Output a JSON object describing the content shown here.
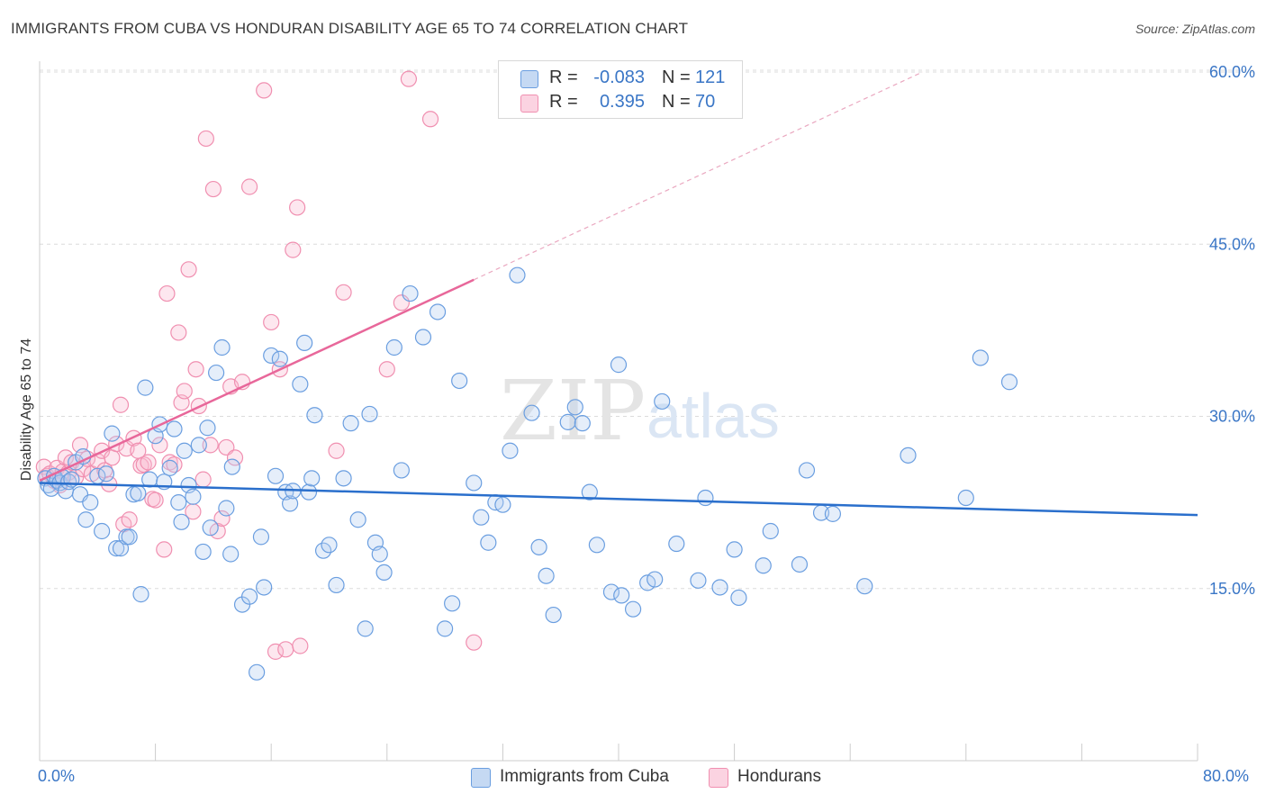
{
  "title": "IMMIGRANTS FROM CUBA VS HONDURAN DISABILITY AGE 65 TO 74 CORRELATION CHART",
  "source": "Source: ZipAtlas.com",
  "watermark": {
    "zip": "ZIP",
    "atlas": "atlas"
  },
  "legend": {
    "r_label": "R =",
    "n_label": "N =",
    "cuba": {
      "r": "-0.083",
      "n": "121"
    },
    "hond": {
      "r": "0.395",
      "n": "70"
    }
  },
  "bottom_legend": {
    "cuba": "Immigrants from Cuba",
    "hond": "Hondurans"
  },
  "x_axis_labels": {
    "min": "0.0%",
    "max": "80.0%"
  },
  "chart_data": {
    "type": "scatter",
    "title": "IMMIGRANTS FROM CUBA VS HONDURAN DISABILITY AGE 65 TO 74 CORRELATION CHART",
    "xlabel": "",
    "ylabel": "Disability Age 65 to 74",
    "xlim": [
      0,
      80
    ],
    "ylim": [
      0,
      62
    ],
    "y_ticks": [
      15,
      30,
      45,
      60
    ],
    "y_tick_labels": [
      "15.0%",
      "30.0%",
      "45.0%",
      "60.0%"
    ],
    "grid": true,
    "colors": {
      "cuba": "#6a9ee0",
      "hond": "#f08fb0",
      "cuba_line": "#2a6fcc",
      "hond_line": "#e8679a"
    },
    "series": [
      {
        "name": "Immigrants from Cuba",
        "trend": {
          "x": [
            0,
            80
          ],
          "y": [
            24.2,
            21.4
          ]
        },
        "points": [
          [
            0.4,
            24.6
          ],
          [
            0.6,
            24.0
          ],
          [
            0.8,
            23.7
          ],
          [
            1.0,
            24.8
          ],
          [
            1.2,
            24.4
          ],
          [
            1.4,
            24.2
          ],
          [
            1.6,
            24.7
          ],
          [
            1.8,
            23.5
          ],
          [
            2.0,
            24.3
          ],
          [
            2.2,
            24.5
          ],
          [
            2.5,
            26.0
          ],
          [
            2.8,
            23.2
          ],
          [
            3.0,
            26.5
          ],
          [
            3.2,
            21.0
          ],
          [
            3.5,
            22.5
          ],
          [
            4.0,
            24.8
          ],
          [
            4.3,
            20.0
          ],
          [
            4.6,
            25.0
          ],
          [
            5.0,
            28.5
          ],
          [
            5.3,
            18.5
          ],
          [
            5.6,
            18.5
          ],
          [
            6.0,
            19.5
          ],
          [
            6.2,
            19.5
          ],
          [
            6.5,
            23.2
          ],
          [
            6.8,
            23.3
          ],
          [
            7.0,
            14.5
          ],
          [
            7.3,
            32.5
          ],
          [
            7.6,
            24.5
          ],
          [
            8.0,
            28.3
          ],
          [
            8.3,
            29.3
          ],
          [
            8.6,
            24.3
          ],
          [
            9.0,
            25.5
          ],
          [
            9.3,
            28.9
          ],
          [
            9.6,
            22.5
          ],
          [
            9.8,
            20.8
          ],
          [
            10.0,
            27.0
          ],
          [
            10.3,
            24.0
          ],
          [
            10.6,
            23.0
          ],
          [
            11.0,
            27.5
          ],
          [
            11.3,
            18.2
          ],
          [
            11.6,
            29.0
          ],
          [
            11.8,
            20.3
          ],
          [
            12.2,
            33.8
          ],
          [
            12.6,
            36.0
          ],
          [
            12.9,
            22.0
          ],
          [
            13.2,
            18.0
          ],
          [
            13.3,
            25.6
          ],
          [
            14.0,
            13.6
          ],
          [
            14.5,
            14.3
          ],
          [
            15.0,
            7.7
          ],
          [
            15.3,
            19.5
          ],
          [
            15.5,
            15.1
          ],
          [
            16.0,
            35.3
          ],
          [
            16.3,
            24.8
          ],
          [
            16.6,
            35.0
          ],
          [
            17.0,
            23.4
          ],
          [
            17.3,
            22.4
          ],
          [
            17.5,
            23.5
          ],
          [
            18.0,
            32.8
          ],
          [
            18.3,
            36.4
          ],
          [
            18.6,
            23.4
          ],
          [
            18.8,
            24.6
          ],
          [
            19.0,
            30.1
          ],
          [
            19.6,
            18.3
          ],
          [
            20.0,
            18.8
          ],
          [
            20.5,
            15.3
          ],
          [
            21.0,
            24.6
          ],
          [
            21.5,
            29.4
          ],
          [
            22.0,
            21.0
          ],
          [
            22.5,
            11.5
          ],
          [
            22.8,
            30.2
          ],
          [
            23.2,
            19.0
          ],
          [
            23.5,
            18.0
          ],
          [
            23.8,
            16.4
          ],
          [
            24.5,
            36.0
          ],
          [
            25.0,
            25.3
          ],
          [
            25.6,
            40.7
          ],
          [
            26.5,
            36.9
          ],
          [
            27.5,
            39.1
          ],
          [
            28.0,
            11.5
          ],
          [
            28.5,
            13.7
          ],
          [
            29.0,
            33.1
          ],
          [
            30.0,
            24.2
          ],
          [
            30.5,
            21.2
          ],
          [
            31.0,
            19.0
          ],
          [
            31.5,
            22.5
          ],
          [
            32.0,
            22.3
          ],
          [
            32.5,
            27.0
          ],
          [
            33.0,
            42.3
          ],
          [
            34.0,
            30.3
          ],
          [
            34.5,
            18.6
          ],
          [
            35.0,
            16.1
          ],
          [
            35.5,
            12.7
          ],
          [
            36.5,
            29.5
          ],
          [
            37.0,
            30.8
          ],
          [
            37.5,
            29.4
          ],
          [
            38.0,
            23.4
          ],
          [
            38.5,
            18.8
          ],
          [
            39.5,
            14.7
          ],
          [
            40.0,
            34.5
          ],
          [
            40.2,
            14.4
          ],
          [
            41.0,
            13.2
          ],
          [
            42.0,
            15.5
          ],
          [
            42.5,
            15.8
          ],
          [
            43.0,
            31.3
          ],
          [
            44.0,
            18.9
          ],
          [
            45.5,
            15.7
          ],
          [
            46.0,
            22.9
          ],
          [
            47.0,
            15.1
          ],
          [
            48.0,
            18.4
          ],
          [
            48.3,
            14.2
          ],
          [
            50.0,
            17.0
          ],
          [
            50.5,
            20.0
          ],
          [
            52.5,
            17.1
          ],
          [
            53.0,
            25.3
          ],
          [
            54.0,
            21.6
          ],
          [
            54.8,
            21.5
          ],
          [
            57.0,
            15.2
          ],
          [
            60.0,
            26.6
          ],
          [
            64.0,
            22.9
          ],
          [
            65.0,
            35.1
          ],
          [
            67.0,
            33.0
          ]
        ]
      },
      {
        "name": "Hondurans",
        "trend": {
          "x": [
            0,
            30
          ],
          "y": [
            24.4,
            41.9
          ]
        },
        "trend_ext": {
          "x": [
            30,
            61
          ],
          "y": [
            41.9,
            60.0
          ]
        },
        "points": [
          [
            0.3,
            25.6
          ],
          [
            0.5,
            24.8
          ],
          [
            0.7,
            25.0
          ],
          [
            1.0,
            24.4
          ],
          [
            1.2,
            25.5
          ],
          [
            1.4,
            24.0
          ],
          [
            1.6,
            25.2
          ],
          [
            1.8,
            26.4
          ],
          [
            2.0,
            25.1
          ],
          [
            2.2,
            26.0
          ],
          [
            2.5,
            24.7
          ],
          [
            2.8,
            27.5
          ],
          [
            3.0,
            25.4
          ],
          [
            3.3,
            26.3
          ],
          [
            3.6,
            25.0
          ],
          [
            4.0,
            26.1
          ],
          [
            4.3,
            27.0
          ],
          [
            4.5,
            25.3
          ],
          [
            4.8,
            24.1
          ],
          [
            5.0,
            26.4
          ],
          [
            5.3,
            27.6
          ],
          [
            5.6,
            31.0
          ],
          [
            5.8,
            20.6
          ],
          [
            6.0,
            27.2
          ],
          [
            6.2,
            21.0
          ],
          [
            6.5,
            28.1
          ],
          [
            6.8,
            27.0
          ],
          [
            7.0,
            25.7
          ],
          [
            7.2,
            25.8
          ],
          [
            7.5,
            26.0
          ],
          [
            7.8,
            22.8
          ],
          [
            8.0,
            22.7
          ],
          [
            8.3,
            27.5
          ],
          [
            8.6,
            18.4
          ],
          [
            8.8,
            40.7
          ],
          [
            9.0,
            26.0
          ],
          [
            9.3,
            25.8
          ],
          [
            9.6,
            37.3
          ],
          [
            9.8,
            31.2
          ],
          [
            10.0,
            32.2
          ],
          [
            10.3,
            42.8
          ],
          [
            10.6,
            21.7
          ],
          [
            10.8,
            34.1
          ],
          [
            11.0,
            30.9
          ],
          [
            11.3,
            24.5
          ],
          [
            11.5,
            54.2
          ],
          [
            11.8,
            27.5
          ],
          [
            12.0,
            49.8
          ],
          [
            12.3,
            20.0
          ],
          [
            12.6,
            21.1
          ],
          [
            12.9,
            27.3
          ],
          [
            13.2,
            32.6
          ],
          [
            13.5,
            26.4
          ],
          [
            14.0,
            33.0
          ],
          [
            14.5,
            50.0
          ],
          [
            15.5,
            58.4
          ],
          [
            16.0,
            38.2
          ],
          [
            16.3,
            9.5
          ],
          [
            16.6,
            34.1
          ],
          [
            17.0,
            9.7
          ],
          [
            17.5,
            44.5
          ],
          [
            17.8,
            48.2
          ],
          [
            18.0,
            10.0
          ],
          [
            20.5,
            27.0
          ],
          [
            21.0,
            40.8
          ],
          [
            24.0,
            34.1
          ],
          [
            25.0,
            39.9
          ],
          [
            25.5,
            59.4
          ],
          [
            27.0,
            55.9
          ],
          [
            30.0,
            10.3
          ]
        ]
      }
    ]
  }
}
